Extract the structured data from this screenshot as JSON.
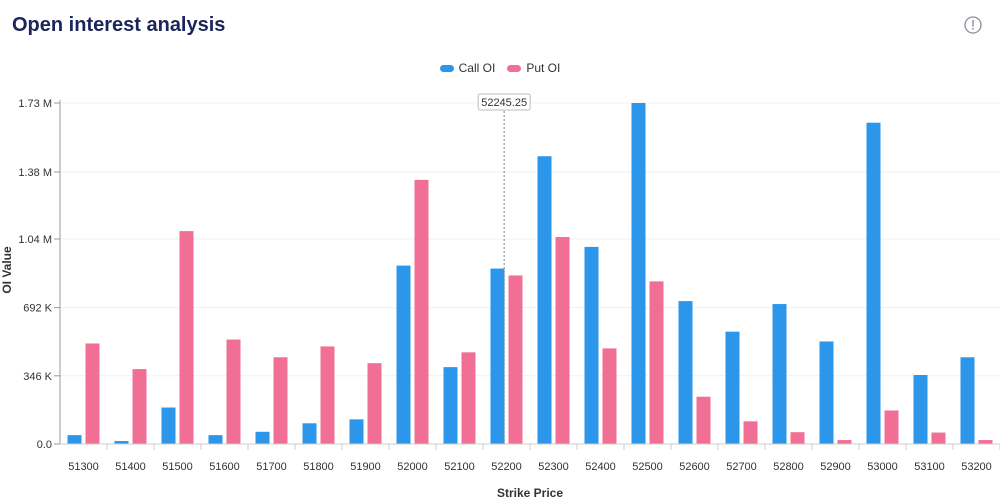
{
  "header": {
    "title": "Open interest analysis",
    "info_icon": "info-circle-icon"
  },
  "chart_data": {
    "type": "bar",
    "categories": [
      "51300",
      "51400",
      "51500",
      "51600",
      "51700",
      "51800",
      "51900",
      "52000",
      "52100",
      "52200",
      "52300",
      "52400",
      "52500",
      "52600",
      "52700",
      "52800",
      "52900",
      "53000",
      "53100",
      "53200"
    ],
    "series": [
      {
        "name": "Call OI",
        "color": "#2b96ea",
        "values": [
          45000,
          15000,
          185000,
          45000,
          62000,
          105000,
          125000,
          905000,
          390000,
          890000,
          1460000,
          1000000,
          1730000,
          725000,
          570000,
          710000,
          520000,
          1630000,
          350000,
          440000
        ]
      },
      {
        "name": "Put OI",
        "color": "#f16f94",
        "values": [
          510000,
          380000,
          1080000,
          530000,
          440000,
          495000,
          410000,
          1340000,
          465000,
          855000,
          1050000,
          485000,
          825000,
          240000,
          115000,
          60000,
          20000,
          170000,
          58000,
          20000
        ]
      }
    ],
    "xlabel": "Strike Price",
    "ylabel": "OI Value",
    "yticks": [
      {
        "value": 0,
        "label": "0.0"
      },
      {
        "value": 346000,
        "label": "346 K"
      },
      {
        "value": 692000,
        "label": "692 K"
      },
      {
        "value": 1040000,
        "label": "1.04 M"
      },
      {
        "value": 1380000,
        "label": "1.38 M"
      },
      {
        "value": 1730000,
        "label": "1.73 M"
      }
    ],
    "ylim": [
      0,
      1730000
    ],
    "grid": true,
    "legend_position": "top-center",
    "marker": {
      "label": "52245.25",
      "category_position": 9.45
    }
  }
}
